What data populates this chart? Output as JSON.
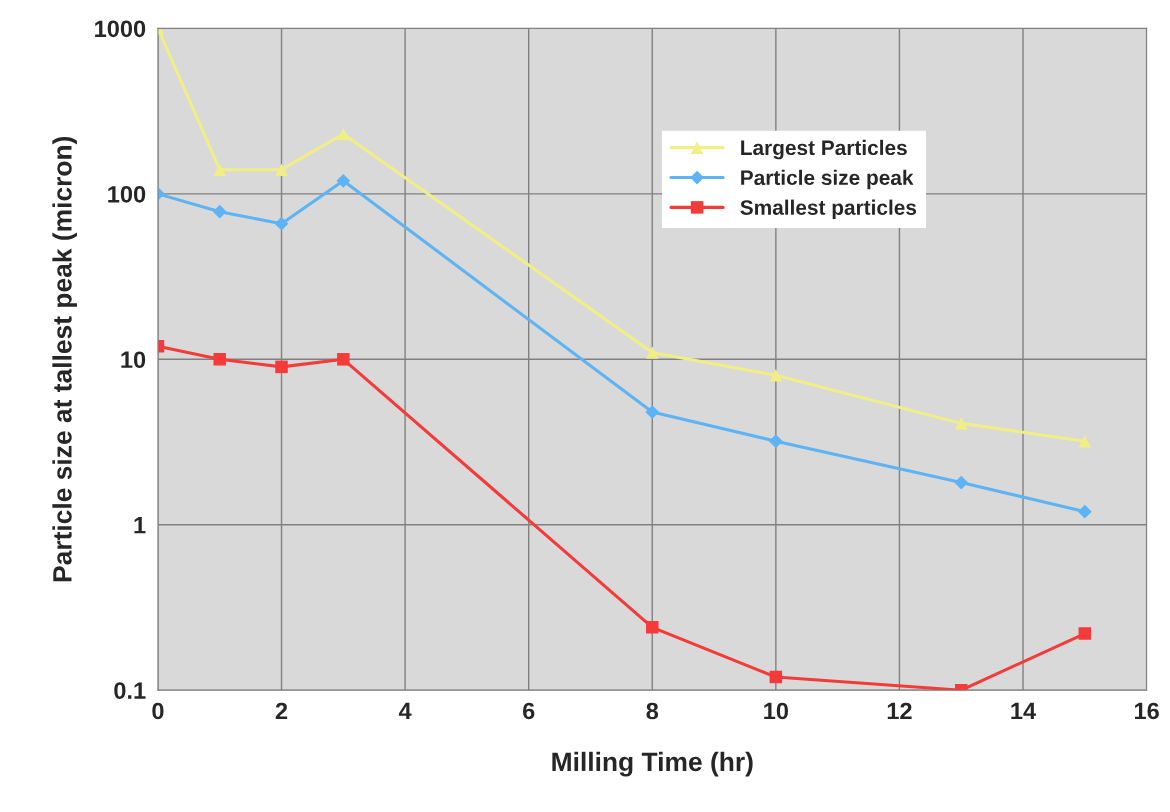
{
  "chart_data": {
    "type": "line",
    "xlabel": "Milling Time (hr)",
    "ylabel": "Particle size at tallest peak (micron)",
    "x": [
      0,
      1,
      2,
      3,
      8,
      10,
      13,
      15
    ],
    "series": [
      {
        "name": "Largest Particles",
        "color": "#f2ee86",
        "marker": "triangle",
        "values": [
          1000,
          140,
          140,
          230,
          11,
          8,
          4.1,
          3.2
        ]
      },
      {
        "name": "Particle size peak",
        "color": "#5eb3f5",
        "marker": "diamond",
        "values": [
          100,
          78,
          66,
          120,
          4.8,
          3.2,
          1.8,
          1.2
        ]
      },
      {
        "name": "Smallest particles",
        "color": "#f53a3a",
        "marker": "square",
        "values": [
          12,
          10,
          9,
          10,
          0.24,
          0.12,
          0.1,
          0.22
        ]
      }
    ],
    "log": "y",
    "xlim": [
      0,
      16
    ],
    "xticks": [
      0,
      2,
      4,
      6,
      8,
      10,
      12,
      14,
      16
    ],
    "ylim": [
      0.1,
      1000
    ],
    "yticks": [
      0.1,
      1,
      10,
      100,
      1000
    ],
    "grid": true,
    "legend": "top right"
  }
}
